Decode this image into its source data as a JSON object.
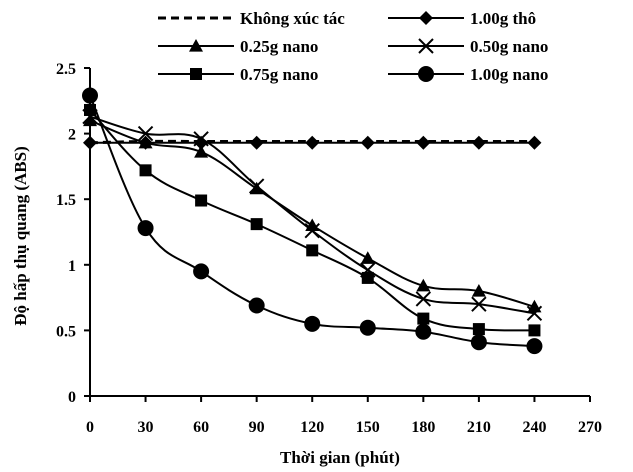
{
  "chart_data": {
    "type": "line",
    "title": "",
    "xlabel": "Thời gian (phút)",
    "ylabel": "Độ hấp thụ quang (ABS)",
    "xlim": [
      0,
      270
    ],
    "ylim": [
      0,
      2.5
    ],
    "xticks": [
      0,
      30,
      60,
      90,
      120,
      150,
      180,
      210,
      240,
      270
    ],
    "yticks": [
      0,
      0.5,
      1,
      1.5,
      2,
      2.5
    ],
    "ytick_labels": [
      "0",
      "0.5",
      "1",
      "1.5",
      "2",
      "2.5"
    ],
    "x": [
      0,
      30,
      60,
      90,
      120,
      150,
      180,
      210,
      240
    ],
    "grid": false,
    "legend_position": "top",
    "series": [
      {
        "name": "Không xúc tác",
        "marker": "none",
        "line_style": "dashed",
        "color": "#000000",
        "values": [
          1.93,
          1.94,
          1.94,
          1.94,
          1.94,
          1.94,
          1.94,
          1.94,
          1.94
        ]
      },
      {
        "name": "1.00g thô",
        "marker": "diamond",
        "line_style": "solid",
        "color": "#000000",
        "values": [
          1.93,
          1.93,
          1.93,
          1.93,
          1.93,
          1.93,
          1.93,
          1.93,
          1.93
        ]
      },
      {
        "name": "0.25g nano",
        "marker": "triangle",
        "line_style": "solid",
        "color": "#000000",
        "values": [
          2.1,
          1.93,
          1.86,
          1.58,
          1.3,
          1.05,
          0.84,
          0.8,
          0.68
        ]
      },
      {
        "name": "0.50g nano",
        "marker": "x",
        "line_style": "solid",
        "color": "#000000",
        "values": [
          2.13,
          2.0,
          1.96,
          1.6,
          1.26,
          0.96,
          0.74,
          0.7,
          0.63
        ]
      },
      {
        "name": "0.75g nano",
        "marker": "square",
        "line_style": "solid",
        "color": "#000000",
        "values": [
          2.18,
          1.72,
          1.49,
          1.31,
          1.11,
          0.9,
          0.59,
          0.51,
          0.5
        ]
      },
      {
        "name": "1.00g nano",
        "marker": "circle",
        "line_style": "solid",
        "color": "#000000",
        "values": [
          2.29,
          1.28,
          0.95,
          0.69,
          0.55,
          0.52,
          0.49,
          0.41,
          0.38
        ]
      }
    ]
  }
}
